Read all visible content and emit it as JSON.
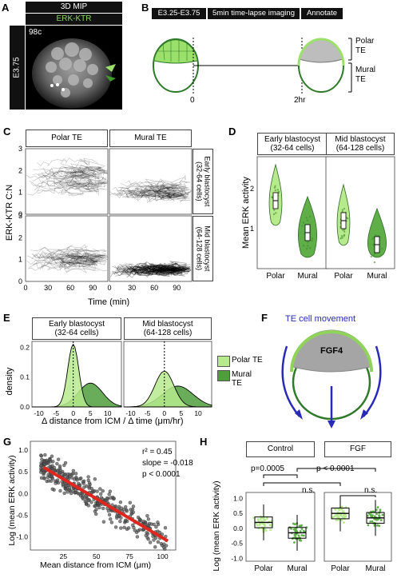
{
  "panels": {
    "A": "A",
    "B": "B",
    "C": "C",
    "D": "D",
    "E": "E",
    "F": "F",
    "G": "G",
    "H": "H"
  },
  "a": {
    "title": "3D MIP",
    "marker": "ERK-KTR",
    "time": "98c",
    "stage": "E3.75"
  },
  "b": {
    "stage_range": "E3.25-E3.75",
    "imaging": "5min time-lapse imaging",
    "annotate": "Annotate",
    "t0": "0",
    "t1": "2hr",
    "polar_te": "Polar\nTE",
    "mural_te": "Mural\nTE"
  },
  "c": {
    "col1": "Polar TE",
    "col2": "Mural TE",
    "row1": "Early blastocyst\n(32-64 cells)",
    "row2": "Mid blastocyst\n(64-128 cells)",
    "ylabel": "ERK-KTR C:N",
    "xlabel": "Time (min)",
    "yticks": [
      "3",
      "2",
      "1",
      "0"
    ],
    "xticks": [
      "0",
      "30",
      "60",
      "90"
    ]
  },
  "d": {
    "ylabel": "Mean ERK activity",
    "group1": "Early blastocyst\n(32-64 cells)",
    "group2": "Mid blastocyst\n(64-128 cells)",
    "yticks": [
      "2",
      "1"
    ],
    "xticks": [
      "Polar",
      "Mural",
      "Polar",
      "Mural"
    ]
  },
  "e": {
    "group1": "Early blastocyst\n(32-64 cells)",
    "group2": "Mid blastocyst\n(64-128 cells)",
    "ylabel": "density",
    "xlabel": "Δ distance from ICM / Δ time (μm/hr)",
    "yticks": [
      "0.2",
      "0.1",
      "0.0"
    ],
    "xticks": [
      "-10",
      "-5",
      "0",
      "5",
      "10"
    ],
    "legend": [
      "Polar TE",
      "Mural TE"
    ]
  },
  "f": {
    "title": "TE cell movement",
    "fgf4": "FGF4"
  },
  "g": {
    "ylabel": "Log (mean ERK activity)",
    "xlabel": "Mean distance from ICM (μm)",
    "r2": "r² = 0.45",
    "slope": "slope = -0.018",
    "p": "p < 0.0001",
    "yticks": [
      "1.0",
      "0.5",
      "0.0",
      "-0.5",
      "-1.0"
    ],
    "xticks": [
      "25",
      "50",
      "75",
      "100"
    ]
  },
  "h": {
    "ylabel": "Log (mean ERK activity)",
    "group1": "Control",
    "group2": "FGF",
    "p1": "p=0.0005",
    "p2": "p < 0.0001",
    "ns1": "n.s.",
    "ns2": "n.s.",
    "yticks": [
      "1.0",
      "0.5",
      "0.0",
      "-0.5",
      "-1.0"
    ],
    "xticks": [
      "Polar",
      "Mural",
      "Polar",
      "Mural"
    ]
  },
  "chart_data": [
    {
      "type": "line",
      "panel": "C",
      "x": [
        0,
        30,
        60,
        90
      ],
      "series": [
        {
          "name": "Polar TE / Early blastocyst",
          "values": [
            1.7,
            1.8,
            1.8,
            1.7
          ]
        },
        {
          "name": "Mural TE / Early blastocyst",
          "values": [
            1.0,
            1.0,
            1.05,
            1.0
          ]
        },
        {
          "name": "Polar TE / Mid blastocyst",
          "values": [
            1.0,
            1.1,
            1.05,
            1.0
          ]
        },
        {
          "name": "Mural TE / Mid blastocyst",
          "values": [
            0.55,
            0.55,
            0.55,
            0.55
          ]
        }
      ],
      "ylim": [
        0,
        3
      ],
      "xlim": [
        0,
        110
      ]
    },
    {
      "type": "violin",
      "panel": "D",
      "categories": [
        "Polar",
        "Mural",
        "Polar",
        "Mural"
      ],
      "medians": [
        1.7,
        0.9,
        1.2,
        0.6
      ],
      "ylim": [
        0,
        2.8
      ]
    },
    {
      "type": "area",
      "panel": "E",
      "series": [
        {
          "name": "Polar TE",
          "peaks": [
            0,
            0
          ]
        },
        {
          "name": "Mural TE",
          "peaks": [
            5,
            4
          ]
        }
      ],
      "peak_density": [
        0.21,
        0.08,
        0.12,
        0.07
      ],
      "xlim": [
        -12,
        14
      ],
      "ylim": [
        0,
        0.22
      ]
    },
    {
      "type": "scatter",
      "panel": "G",
      "fit": {
        "intercept": 0.78,
        "slope": -0.018
      },
      "xlim": [
        0,
        110
      ],
      "ylim": [
        -1.3,
        1.2
      ]
    },
    {
      "type": "box",
      "panel": "H",
      "categories": [
        "Polar",
        "Mural",
        "Polar",
        "Mural"
      ],
      "medians": [
        0.2,
        -0.15,
        0.5,
        0.35
      ],
      "ylim": [
        -1.1,
        1.2
      ]
    }
  ]
}
